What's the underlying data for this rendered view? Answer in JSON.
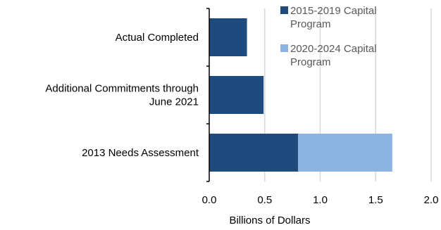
{
  "chart_data": {
    "type": "bar",
    "orientation": "horizontal",
    "stacked": true,
    "categories": [
      "Actual Completed",
      "Additional Commitments through June 2021",
      "2013 Needs Assessment"
    ],
    "category_label_lines": [
      [
        "Actual Completed"
      ],
      [
        "Additional Commitments through",
        "June 2021"
      ],
      [
        "2013 Needs Assessment"
      ]
    ],
    "series": [
      {
        "name": "2015-2019 Capital Program",
        "legend_lines": [
          "2015-2019 Capital",
          "Program"
        ],
        "color": "#1f4a7d",
        "values": [
          0.34,
          0.49,
          0.8
        ]
      },
      {
        "name": "2020-2024 Capital Program",
        "legend_lines": [
          "2020-2024 Capital",
          "Program"
        ],
        "color": "#8db3e2",
        "values": [
          0,
          0,
          0.85
        ]
      }
    ],
    "xlabel": "Billions of Dollars",
    "ylabel": "",
    "xlim": [
      0,
      2.0
    ],
    "xticks": [
      "0.0",
      "0.5",
      "1.0",
      "1.5",
      "2.0"
    ],
    "xtick_values": [
      0,
      0.5,
      1.0,
      1.5,
      2.0
    ],
    "grid": "vertical",
    "legend_position": "top-right"
  }
}
